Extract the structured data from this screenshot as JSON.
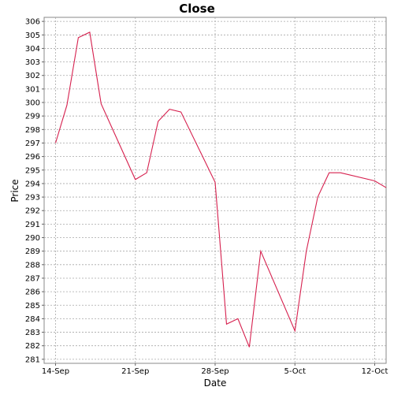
{
  "chart_data": {
    "type": "line",
    "title": "Close",
    "xlabel": "Date",
    "ylabel": "Price",
    "x_ticks": [
      {
        "label": "14-Sep",
        "date": "2020-09-14"
      },
      {
        "label": "21-Sep",
        "date": "2020-09-21"
      },
      {
        "label": "28-Sep",
        "date": "2020-09-28"
      },
      {
        "label": "5-Oct",
        "date": "2020-10-05"
      },
      {
        "label": "12-Oct",
        "date": "2020-10-12"
      }
    ],
    "y_ticks": [
      281,
      282,
      283,
      284,
      285,
      286,
      287,
      288,
      289,
      290,
      291,
      292,
      293,
      294,
      295,
      296,
      297,
      298,
      299,
      300,
      301,
      302,
      303,
      304,
      305,
      306
    ],
    "ylim": [
      280.7,
      306.3
    ],
    "xlim": [
      "2020-09-13",
      "2020-10-13"
    ],
    "grid": true,
    "line_color": "#d6204e",
    "series": [
      {
        "x": [
          "2020-09-14",
          "2020-09-15",
          "2020-09-16",
          "2020-09-17",
          "2020-09-18",
          "2020-09-21",
          "2020-09-22",
          "2020-09-23",
          "2020-09-24",
          "2020-09-25",
          "2020-09-28",
          "2020-09-29",
          "2020-09-30",
          "2020-10-01",
          "2020-10-02",
          "2020-10-05",
          "2020-10-06",
          "2020-10-07",
          "2020-10-08",
          "2020-10-09",
          "2020-10-12",
          "2020-10-13"
        ],
        "y": [
          297.0,
          299.8,
          304.8,
          305.2,
          299.9,
          294.3,
          294.8,
          298.6,
          299.5,
          299.3,
          294.1,
          283.6,
          284.0,
          281.9,
          289.0,
          283.1,
          289.0,
          293.0,
          294.8,
          294.8,
          294.2,
          293.7
        ]
      }
    ]
  }
}
